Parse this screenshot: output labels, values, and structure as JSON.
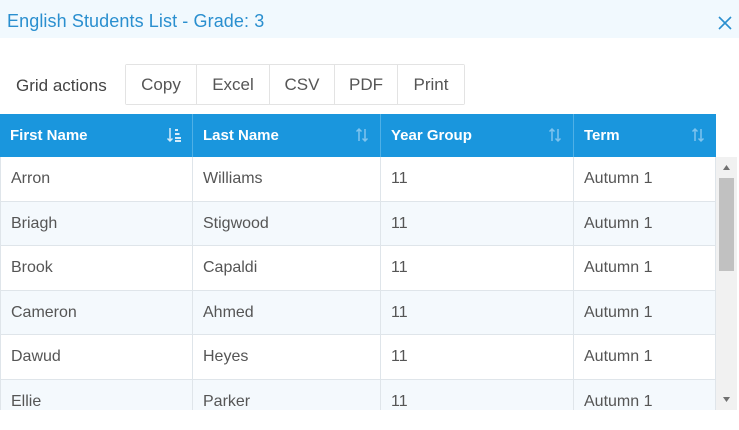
{
  "dialog": {
    "title": "English Students List - Grade: 3",
    "close_icon": "close-icon"
  },
  "toolbar": {
    "label": "Grid actions",
    "buttons": [
      "Copy",
      "Excel",
      "CSV",
      "PDF",
      "Print"
    ]
  },
  "grid": {
    "columns": [
      {
        "label": "First Name",
        "sort_icon": "sort-ascending-icon"
      },
      {
        "label": "Last Name",
        "sort_icon": "sort-icon"
      },
      {
        "label": "Year Group",
        "sort_icon": "sort-icon"
      },
      {
        "label": "Term",
        "sort_icon": "sort-icon"
      }
    ],
    "rows": [
      [
        "Arron",
        "Williams",
        "11",
        "Autumn 1"
      ],
      [
        "Briagh",
        "Stigwood",
        "11",
        "Autumn 1"
      ],
      [
        "Brook",
        "Capaldi",
        "11",
        "Autumn 1"
      ],
      [
        "Cameron",
        "Ahmed",
        "11",
        "Autumn 1"
      ],
      [
        "Dawud",
        "Heyes",
        "11",
        "Autumn 1"
      ],
      [
        "Ellie",
        "Parker",
        "11",
        "Autumn 1"
      ]
    ]
  },
  "colors": {
    "title": "#2a8fcf",
    "header_bg": "#1a96dd",
    "alt_row": "#f4f9fd"
  }
}
